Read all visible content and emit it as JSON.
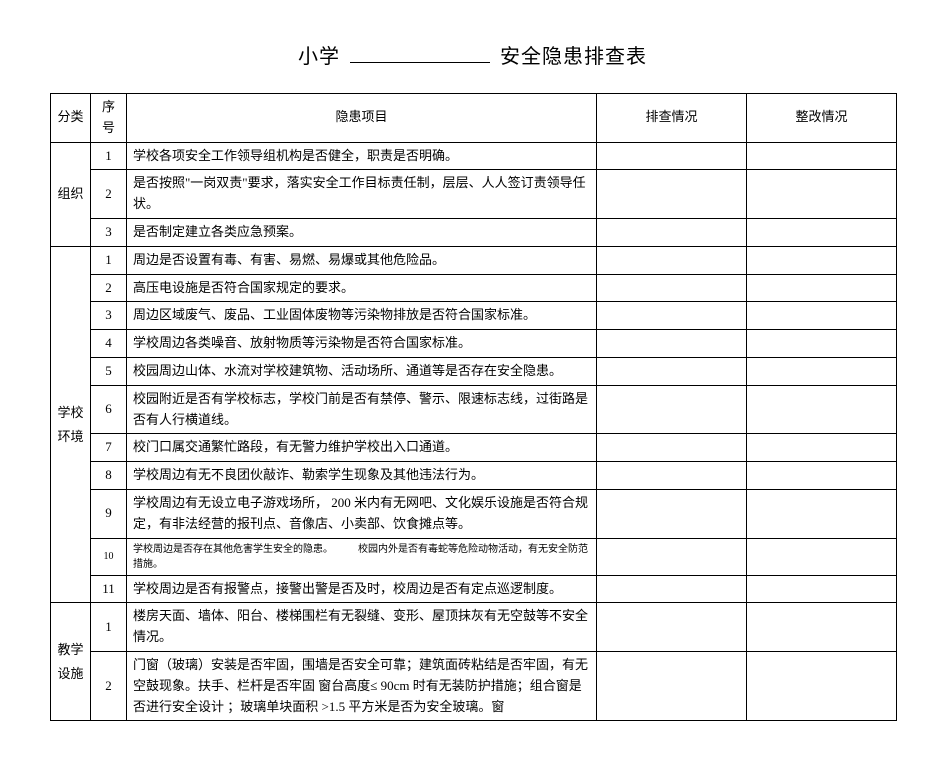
{
  "title_prefix": "小学",
  "title_suffix": "安全隐患排查表",
  "headers": {
    "category": "分类",
    "seq": "序号",
    "item": "隐患项目",
    "check": "排查情况",
    "rectify": "整改情况"
  },
  "sec1": {
    "cat": "组织",
    "r1": {
      "n": "1",
      "t": "学校各项安全工作领导组机构是否健全，职责是否明确。"
    },
    "r2": {
      "n": "2",
      "t": "是否按照\"一岗双责\"要求，落实安全工作目标责任制，层层、人人签订责领导任状。"
    },
    "r3": {
      "n": "3",
      "t": "是否制定建立各类应急预案。"
    }
  },
  "sec2": {
    "cat": "学校环境",
    "r1": {
      "n": "1",
      "t": "周边是否设置有毒、有害、易燃、易爆或其他危险品。"
    },
    "r2": {
      "n": "2",
      "t": "高压电设施是否符合国家规定的要求。"
    },
    "r3": {
      "n": "3",
      "t": "周边区域废气、废品、工业固体废物等污染物排放是否符合国家标准。"
    },
    "r4": {
      "n": "4",
      "t": "学校周边各类噪音、放射物质等污染物是否符合国家标准。"
    },
    "r5": {
      "n": "5",
      "t": "校园周边山体、水流对学校建筑物、活动场所、通道等是否存在安全隐患。"
    },
    "r6": {
      "n": "6",
      "t": "校园附近是否有学校标志，学校门前是否有禁停、警示、限速标志线，过街路是否有人行横道线。"
    },
    "r7": {
      "n": "7",
      "t": "校门口属交通繁忙路段，有无警力维护学校出入口通道。"
    },
    "r8": {
      "n": "8",
      "t": "学校周边有无不良团伙敲诈、勒索学生现象及其他违法行为。"
    },
    "r9": {
      "n": "9",
      "t": "学校周边有无设立电子游戏场所，  200 米内有无网吧、文化娱乐设施是否符合规定，有非法经营的报刊点、音像店、小卖部、饮食摊点等。"
    },
    "r10": {
      "n": "10",
      "t1": "学校周边是否存在其他危害学生安全的隐患。",
      "t2": "校园内外是否有毒蛇等危险动物活动，有无安全防范措施。"
    },
    "r11": {
      "n": "11",
      "t": "学校周边是否有报警点，接警出警是否及时，校周边是否有定点巡逻制度。"
    }
  },
  "sec3": {
    "cat": "教学设施",
    "r1": {
      "n": "1",
      "t": "楼房天面、墙体、阳台、楼梯围栏有无裂缝、变形、屋顶抹灰有无空鼓等不安全情况。"
    },
    "r2": {
      "n": "2",
      "t": "门窗（玻璃）安装是否牢固，围墙是否安全可靠；建筑面砖粘结是否牢固，有无空鼓现象。扶手、栏杆是否牢固    窗台高度≤ 90cm 时有无装防护措施；组合窗是否进行安全设计  ；玻璃单块面积  >1.5  平方米是否为安全玻璃。窗"
    }
  }
}
